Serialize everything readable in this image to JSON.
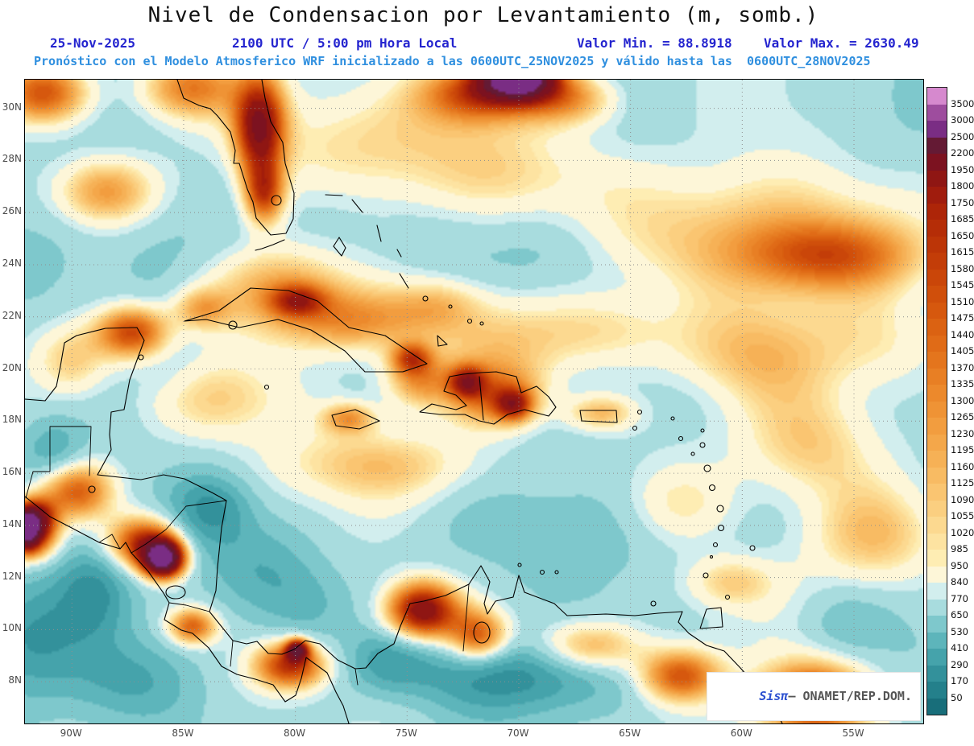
{
  "header": {
    "title": "Nivel de Condensacion por Levantamiento (m, somb.)",
    "date": "25-Nov-2025",
    "time": "2100 UTC / 5:00 pm Hora Local",
    "min_label": "Valor Min. = 88.8918",
    "max_label": "Valor Max. = 2630.49",
    "forecast_line": "Pronóstico con el Modelo Atmosferico WRF inicializado a las 0600UTC_25NOV2025 y válido hasta las  0600UTC_28NOV2025"
  },
  "watermark": {
    "brand": "Sisπ",
    "suffix": "– ONAMET/REP.DOM."
  },
  "colors": {
    "header_blue": "#2424cf",
    "forecast_blue": "#2f8fdf",
    "grid": "#8f8f8f",
    "tick_label": "#4a4a4a",
    "coastline": "#000000"
  },
  "axes": {
    "lat_ticks": [
      {
        "label": "30N",
        "lat": 30
      },
      {
        "label": "28N",
        "lat": 28
      },
      {
        "label": "26N",
        "lat": 26
      },
      {
        "label": "24N",
        "lat": 24
      },
      {
        "label": "22N",
        "lat": 22
      },
      {
        "label": "20N",
        "lat": 20
      },
      {
        "label": "18N",
        "lat": 18
      },
      {
        "label": "16N",
        "lat": 16
      },
      {
        "label": "14N",
        "lat": 14
      },
      {
        "label": "12N",
        "lat": 12
      },
      {
        "label": "10N",
        "lat": 10
      },
      {
        "label": "8N",
        "lat": 8
      }
    ],
    "lon_ticks": [
      {
        "label": "90W",
        "lon": -90
      },
      {
        "label": "85W",
        "lon": -85
      },
      {
        "label": "80W",
        "lon": -80
      },
      {
        "label": "75W",
        "lon": -75
      },
      {
        "label": "70W",
        "lon": -70
      },
      {
        "label": "65W",
        "lon": -65
      },
      {
        "label": "60W",
        "lon": -60
      },
      {
        "label": "55W",
        "lon": -55
      }
    ]
  },
  "colorbar": {
    "levels": [
      50,
      170,
      290,
      410,
      530,
      650,
      770,
      840,
      950,
      985,
      1020,
      1055,
      1090,
      1125,
      1160,
      1195,
      1230,
      1265,
      1300,
      1335,
      1370,
      1405,
      1440,
      1475,
      1510,
      1545,
      1580,
      1615,
      1650,
      1685,
      1750,
      1800,
      1950,
      2200,
      2500,
      3000,
      3500
    ],
    "colors": [
      "#186e7a",
      "#24808b",
      "#33919b",
      "#45a3ab",
      "#5db5bb",
      "#7ec8cc",
      "#a8dcde",
      "#d2eeee",
      "#fdf6d8",
      "#feedb3",
      "#fde3a1",
      "#fcd990",
      "#fbcf80",
      "#fac571",
      "#f8bb63",
      "#f6b156",
      "#f4a74a",
      "#f29d3f",
      "#ef9335",
      "#ec892c",
      "#e87f24",
      "#e4751d",
      "#e06b17",
      "#db6212",
      "#d6580e",
      "#d04f0b",
      "#ca4609",
      "#c33d08",
      "#bc3507",
      "#b52d07",
      "#ad2508",
      "#a01c0d",
      "#8f1613",
      "#7c1220",
      "#641a34",
      "#7a2d84",
      "#9e4d9e",
      "#d689ce"
    ]
  },
  "chart_data": {
    "type": "heatmap",
    "title": "Nivel de Condensacion por Levantamiento (m, somb.)",
    "units": "m",
    "lon_range": [
      -92.1,
      -51.9
    ],
    "lat_range": [
      6.4,
      31.1
    ],
    "value_min": 88.8918,
    "value_max": 2630.49,
    "base": 720,
    "features": [
      [
        -75.5,
        28.8,
        1020,
        6.5,
        2.2
      ],
      [
        -70,
        27.2,
        980,
        4,
        1.8
      ],
      [
        -59,
        25.2,
        1120,
        7,
        2.5
      ],
      [
        -56,
        24.3,
        1260,
        4,
        1.3
      ],
      [
        -80.5,
        23.2,
        1150,
        3.5,
        1.5
      ],
      [
        -77.5,
        21.8,
        1230,
        3.5,
        1.2
      ],
      [
        -70.8,
        21,
        1050,
        3.5,
        1.8
      ],
      [
        -66,
        21.5,
        1000,
        3,
        1.5
      ],
      [
        -71,
        18.9,
        1350,
        2.2,
        1.2
      ],
      [
        -74.5,
        19.5,
        1200,
        1.5,
        1
      ],
      [
        -76,
        16.3,
        1060,
        5,
        1.4
      ],
      [
        -83.5,
        18.8,
        1060,
        3,
        1.6
      ],
      [
        -87.3,
        21.4,
        1600,
        1.6,
        1
      ],
      [
        -90,
        20.3,
        1150,
        1.8,
        1.5
      ],
      [
        -88.5,
        26.8,
        1280,
        2.2,
        1.3
      ],
      [
        -91.3,
        30.6,
        1550,
        2,
        1.2
      ],
      [
        -84.8,
        30.8,
        1350,
        2.2,
        1.2
      ],
      [
        -81.6,
        29.3,
        1850,
        1.1,
        1.9
      ],
      [
        -81.4,
        26.7,
        1500,
        0.9,
        1.2
      ],
      [
        -70,
        31.2,
        2680,
        1.6,
        0.8
      ],
      [
        -71.8,
        30.6,
        1500,
        2.6,
        1.1
      ],
      [
        -67.8,
        30.4,
        1250,
        2.2,
        1
      ],
      [
        -85.9,
        12.7,
        2600,
        0.9,
        0.7
      ],
      [
        -86.8,
        13.3,
        1700,
        1.6,
        1
      ],
      [
        -89.8,
        15.3,
        1450,
        1.6,
        1.1
      ],
      [
        -91.6,
        14.2,
        1900,
        0.9,
        0.8
      ],
      [
        -91.9,
        13.3,
        1400,
        1.2,
        0.8
      ],
      [
        -84.6,
        10.1,
        1450,
        1.1,
        0.7
      ],
      [
        -80.2,
        8.6,
        1650,
        1.6,
        0.9
      ],
      [
        -74.3,
        10.7,
        1950,
        1.6,
        1.1
      ],
      [
        -71.8,
        9.7,
        1500,
        1.3,
        1
      ],
      [
        -66.8,
        9.3,
        1280,
        2.4,
        1
      ],
      [
        -62.8,
        8.2,
        1500,
        1.8,
        1
      ],
      [
        -56.8,
        7.3,
        1750,
        2.4,
        1.4
      ],
      [
        -60.5,
        11.8,
        1050,
        2,
        1
      ],
      [
        -66.3,
        18.3,
        1150,
        1.6,
        0.7
      ],
      [
        -77.6,
        18.1,
        1200,
        1.2,
        0.6
      ],
      [
        -73.5,
        22.5,
        1000,
        2,
        1
      ],
      [
        -63,
        14.8,
        980,
        2.5,
        1.5
      ],
      [
        -59.5,
        20.5,
        1060,
        4,
        2
      ],
      [
        -57,
        17,
        1060,
        3,
        2
      ],
      [
        -54,
        13.5,
        1120,
        3,
        2
      ],
      [
        -53.5,
        21,
        980,
        3,
        2
      ],
      [
        -92,
        13.9,
        2100,
        0.5,
        0.7
      ],
      [
        -79.9,
        9.2,
        1900,
        0.5,
        0.4
      ],
      [
        -74.8,
        20.4,
        1350,
        0.9,
        0.6
      ],
      [
        -79.9,
        22.6,
        1300,
        1.2,
        0.6
      ],
      [
        -84.2,
        22.3,
        1150,
        1.3,
        0.8
      ],
      [
        -72.3,
        19.5,
        1450,
        0.8,
        0.6
      ],
      [
        -70.2,
        18.6,
        1400,
        0.8,
        0.6
      ],
      [
        -83.8,
        14.6,
        280,
        1.8,
        1.4
      ],
      [
        -81.5,
        12.3,
        420,
        2.6,
        1.8
      ],
      [
        -79.5,
        10.8,
        500,
        2,
        1.5
      ],
      [
        -70.5,
        8.2,
        220,
        4.5,
        1.4
      ],
      [
        -75.8,
        8.8,
        380,
        1.8,
        1.2
      ],
      [
        -90.8,
        16.8,
        420,
        1.4,
        1.2
      ],
      [
        -92,
        9.8,
        300,
        2.5,
        2.2
      ],
      [
        -87.5,
        8,
        430,
        3,
        1.6
      ],
      [
        -91.5,
        24.5,
        620,
        2.5,
        2.2
      ],
      [
        -86,
        24.5,
        650,
        2.5,
        2
      ],
      [
        -78.5,
        25.8,
        600,
        2.2,
        1.6
      ],
      [
        -74.5,
        24.8,
        640,
        2.6,
        1.4
      ],
      [
        -68.5,
        24.2,
        620,
        2.6,
        1.6
      ],
      [
        -64,
        22.8,
        700,
        2.5,
        1.5
      ],
      [
        -77.5,
        23.9,
        680,
        1.8,
        1.2
      ],
      [
        -65.5,
        14.2,
        600,
        3,
        2
      ],
      [
        -59.5,
        13.5,
        680,
        2.5,
        1.8
      ],
      [
        -62.5,
        18.9,
        650,
        2.6,
        1.4
      ],
      [
        -55.5,
        10.2,
        560,
        2,
        1.5
      ],
      [
        -53,
        29,
        700,
        3,
        2.5
      ],
      [
        -62,
        28.5,
        700,
        3,
        2
      ],
      [
        -68.5,
        13.2,
        640,
        3,
        1.8
      ],
      [
        -72.5,
        13.8,
        680,
        2.5,
        1.5
      ],
      [
        -85.5,
        20,
        650,
        1.6,
        1.2
      ],
      [
        -89,
        11.5,
        350,
        1.6,
        1.8
      ]
    ]
  }
}
